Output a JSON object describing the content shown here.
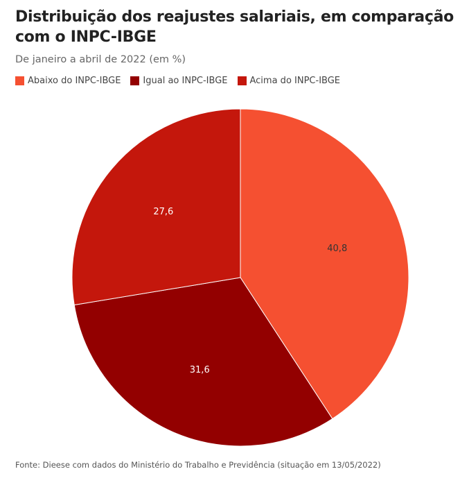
{
  "chart_data": {
    "type": "pie",
    "title": "Distribuição dos reajustes salariais, em comparação com o INPC-IBGE",
    "subtitle": "De janeiro a abril de 2022 (em %)",
    "source": "Fonte: Dieese com dados do Ministério do Trabalho e Previdência (situação em 13/05/2022)",
    "categories": [
      "Abaixo do INPC-IBGE",
      "Igual ao INPC-IBGE",
      "Acima do INPC-IBGE"
    ],
    "values": [
      40.8,
      31.6,
      27.6
    ],
    "value_labels": [
      "40,8",
      "31,6",
      "27,6"
    ],
    "colors": [
      "#f55031",
      "#930000",
      "#c4170c"
    ]
  }
}
